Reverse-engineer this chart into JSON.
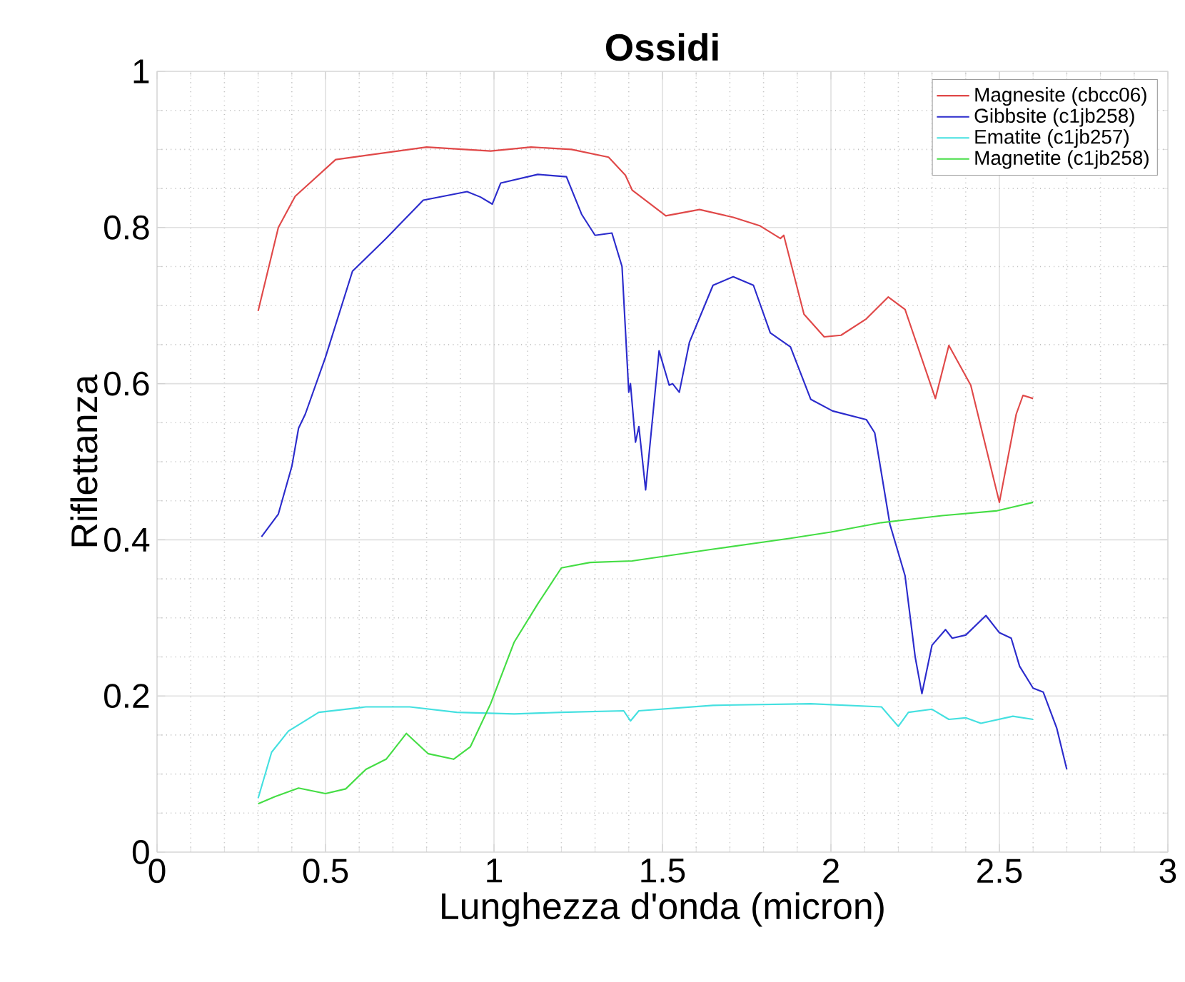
{
  "chart_data": {
    "type": "line",
    "title": "Ossidi",
    "xlabel": "Lunghezza d'onda (micron)",
    "ylabel": "Riflettanza",
    "xlim": [
      0,
      3
    ],
    "ylim": [
      0,
      1
    ],
    "xticks": [
      0,
      0.5,
      1,
      1.5,
      2,
      2.5,
      3
    ],
    "yticks": [
      0,
      0.2,
      0.4,
      0.6,
      0.8,
      1
    ],
    "grid": true,
    "legend": "top right",
    "marker": "none",
    "line_style": "solid",
    "series": [
      {
        "name": "Magnesite (cbcc06)",
        "color": "#e04848",
        "x": [
          0.3,
          0.36,
          0.41,
          0.53,
          0.8,
          0.99,
          1.11,
          1.23,
          1.34,
          1.39,
          1.41,
          1.51,
          1.61,
          1.71,
          1.79,
          1.85,
          1.86,
          1.92,
          1.98,
          2.03,
          2.105,
          2.17,
          2.22,
          2.31,
          2.35,
          2.415,
          2.5,
          2.55,
          2.57,
          2.6
        ],
        "values": [
          0.693,
          0.8,
          0.84,
          0.887,
          0.903,
          0.898,
          0.903,
          0.9,
          0.89,
          0.867,
          0.848,
          0.815,
          0.823,
          0.813,
          0.802,
          0.786,
          0.79,
          0.689,
          0.66,
          0.662,
          0.683,
          0.711,
          0.695,
          0.581,
          0.649,
          0.598,
          0.448,
          0.561,
          0.585,
          0.581
        ]
      },
      {
        "name": "Gibbsite (c1jb258)",
        "color": "#2b2bcc",
        "x": [
          0.31,
          0.36,
          0.4,
          0.42,
          0.44,
          0.5,
          0.58,
          0.68,
          0.79,
          0.92,
          0.96,
          0.995,
          1.02,
          1.13,
          1.215,
          1.26,
          1.3,
          1.35,
          1.38,
          1.4,
          1.405,
          1.42,
          1.43,
          1.45,
          1.49,
          1.52,
          1.53,
          1.55,
          1.58,
          1.65,
          1.71,
          1.77,
          1.82,
          1.88,
          1.94,
          2.005,
          2.105,
          2.13,
          2.175,
          2.22,
          2.25,
          2.27,
          2.3,
          2.34,
          2.36,
          2.4,
          2.46,
          2.5,
          2.535,
          2.56,
          2.6,
          2.63,
          2.67,
          2.7
        ],
        "values": [
          0.404,
          0.433,
          0.494,
          0.543,
          0.561,
          0.634,
          0.744,
          0.786,
          0.835,
          0.846,
          0.839,
          0.83,
          0.857,
          0.868,
          0.865,
          0.817,
          0.79,
          0.793,
          0.75,
          0.589,
          0.6,
          0.525,
          0.545,
          0.464,
          0.642,
          0.598,
          0.6,
          0.589,
          0.653,
          0.726,
          0.737,
          0.726,
          0.665,
          0.647,
          0.58,
          0.565,
          0.554,
          0.537,
          0.42,
          0.354,
          0.25,
          0.203,
          0.265,
          0.285,
          0.274,
          0.278,
          0.303,
          0.281,
          0.274,
          0.238,
          0.21,
          0.205,
          0.159,
          0.106
        ]
      },
      {
        "name": "Ematite (c1jb257)",
        "color": "#44e0e0",
        "x": [
          0.3,
          0.34,
          0.39,
          0.48,
          0.62,
          0.75,
          0.89,
          1.06,
          1.2,
          1.385,
          1.405,
          1.43,
          1.65,
          1.94,
          2.15,
          2.2,
          2.23,
          2.3,
          2.35,
          2.4,
          2.445,
          2.54,
          2.6
        ],
        "values": [
          0.069,
          0.128,
          0.155,
          0.179,
          0.186,
          0.186,
          0.179,
          0.177,
          0.179,
          0.181,
          0.168,
          0.181,
          0.188,
          0.19,
          0.186,
          0.161,
          0.179,
          0.183,
          0.17,
          0.172,
          0.165,
          0.174,
          0.17
        ]
      },
      {
        "name": "Magnetite (c1jb258)",
        "color": "#44dd44",
        "x": [
          0.3,
          0.35,
          0.42,
          0.5,
          0.56,
          0.62,
          0.68,
          0.74,
          0.805,
          0.88,
          0.93,
          0.99,
          1.06,
          1.13,
          1.2,
          1.285,
          1.41,
          1.65,
          1.88,
          2.0,
          2.15,
          2.33,
          2.49,
          2.54,
          2.6
        ],
        "values": [
          0.062,
          0.071,
          0.082,
          0.075,
          0.081,
          0.106,
          0.119,
          0.152,
          0.126,
          0.119,
          0.135,
          0.19,
          0.269,
          0.318,
          0.364,
          0.371,
          0.373,
          0.388,
          0.402,
          0.41,
          0.422,
          0.431,
          0.437,
          0.442,
          0.448
        ]
      }
    ]
  }
}
